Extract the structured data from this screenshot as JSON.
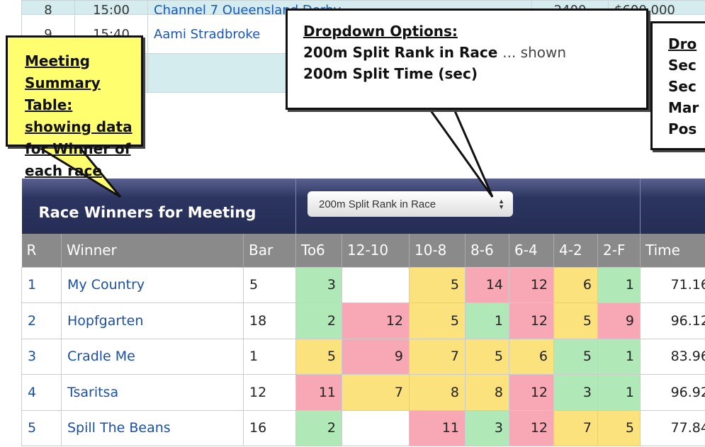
{
  "background_table": {
    "rows": [
      {
        "r": "8",
        "time": "15:00",
        "race": "Channel 7 Queensland Derby",
        "dist": "2400",
        "prize": "$600,000"
      },
      {
        "r": "9",
        "time": "15:40",
        "race": "Aami Stradbroke",
        "dist": "",
        "prize": ""
      },
      {
        "r": "",
        "time": "",
        "race": "",
        "dist": "",
        "prize": ""
      }
    ]
  },
  "callouts": {
    "summary": {
      "text": "Meeting Summary Table: showing data for Winner of each race"
    },
    "dropdown": {
      "title": "Dropdown Options:",
      "option1": "200m Split Rank in Race",
      "option1_note": "... shown",
      "option2": "200m Split Time (sec)"
    },
    "right": {
      "title": "Dro",
      "lines": [
        "Sec",
        "Sec",
        "Mar",
        "Pos"
      ]
    }
  },
  "table": {
    "title": "Race Winners for Meeting",
    "select_value": "200m Split Rank in Race",
    "headers": [
      "R",
      "Winner",
      "Bar",
      "To6",
      "12-10",
      "10-8",
      "8-6",
      "6-4",
      "4-2",
      "2-F",
      "Time"
    ],
    "colors": {
      "green": "#b0e8b8",
      "yellow": "#fbe27c",
      "pink": "#f8a8b4"
    },
    "rows": [
      {
        "r": "1",
        "winner": "My Country",
        "bar": "5",
        "splits": [
          {
            "v": "3",
            "c": "g"
          },
          {
            "v": "",
            "c": "w"
          },
          {
            "v": "5",
            "c": "y"
          },
          {
            "v": "14",
            "c": "p"
          },
          {
            "v": "12",
            "c": "p"
          },
          {
            "v": "6",
            "c": "y"
          },
          {
            "v": "1",
            "c": "g"
          }
        ],
        "time": "71.16"
      },
      {
        "r": "2",
        "winner": "Hopfgarten",
        "bar": "18",
        "splits": [
          {
            "v": "2",
            "c": "g"
          },
          {
            "v": "12",
            "c": "p"
          },
          {
            "v": "5",
            "c": "y"
          },
          {
            "v": "1",
            "c": "g"
          },
          {
            "v": "12",
            "c": "p"
          },
          {
            "v": "5",
            "c": "y"
          },
          {
            "v": "9",
            "c": "p"
          }
        ],
        "time": "96.12"
      },
      {
        "r": "3",
        "winner": "Cradle Me",
        "bar": "1",
        "splits": [
          {
            "v": "5",
            "c": "y"
          },
          {
            "v": "9",
            "c": "p"
          },
          {
            "v": "7",
            "c": "y"
          },
          {
            "v": "5",
            "c": "y"
          },
          {
            "v": "6",
            "c": "y"
          },
          {
            "v": "5",
            "c": "g"
          },
          {
            "v": "1",
            "c": "g"
          }
        ],
        "time": "83.96"
      },
      {
        "r": "4",
        "winner": "Tsaritsa",
        "bar": "12",
        "splits": [
          {
            "v": "11",
            "c": "p"
          },
          {
            "v": "7",
            "c": "y"
          },
          {
            "v": "8",
            "c": "y"
          },
          {
            "v": "8",
            "c": "y"
          },
          {
            "v": "12",
            "c": "p"
          },
          {
            "v": "3",
            "c": "g"
          },
          {
            "v": "1",
            "c": "g"
          }
        ],
        "time": "96.92"
      },
      {
        "r": "5",
        "winner": "Spill The Beans",
        "bar": "16",
        "splits": [
          {
            "v": "2",
            "c": "g"
          },
          {
            "v": "",
            "c": "w"
          },
          {
            "v": "11",
            "c": "p"
          },
          {
            "v": "3",
            "c": "g"
          },
          {
            "v": "12",
            "c": "p"
          },
          {
            "v": "7",
            "c": "y"
          },
          {
            "v": "5",
            "c": "y"
          }
        ],
        "time": "77.84"
      }
    ]
  }
}
